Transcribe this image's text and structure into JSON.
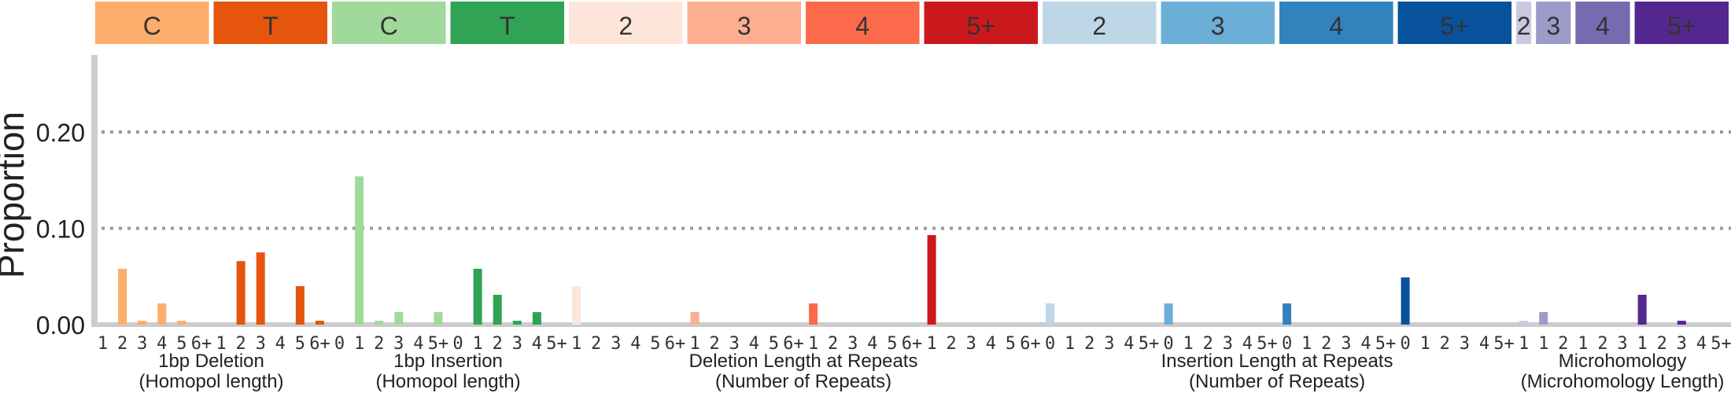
{
  "chart_data": {
    "type": "bar",
    "ylabel": "Proportion",
    "ylim": [
      0,
      0.28
    ],
    "yticks": [
      0.0,
      0.1,
      0.2
    ],
    "ytick_labels": [
      "0.00",
      "0.10",
      "0.20"
    ],
    "grid": "horizontal dotted at 0.10 and 0.20",
    "categories": [
      {
        "label": "C",
        "color": "#fdae6b",
        "text_color": "#333333"
      },
      {
        "label": "T",
        "color": "#e6550d",
        "text_color": "#333333"
      },
      {
        "label": "C",
        "color": "#a1d99b",
        "text_color": "#333333"
      },
      {
        "label": "T",
        "color": "#31a354",
        "text_color": "#333333"
      },
      {
        "label": "2",
        "color": "#fee5d9",
        "text_color": "#333333"
      },
      {
        "label": "3",
        "color": "#fcae91",
        "text_color": "#333333"
      },
      {
        "label": "4",
        "color": "#fb6a4a",
        "text_color": "#333333"
      },
      {
        "label": "5+",
        "color": "#cb181d",
        "text_color": "#333333"
      },
      {
        "label": "2",
        "color": "#bdd7e7",
        "text_color": "#333333"
      },
      {
        "label": "3",
        "color": "#6baed6",
        "text_color": "#333333"
      },
      {
        "label": "4",
        "color": "#3182bd",
        "text_color": "#333333"
      },
      {
        "label": "5+",
        "color": "#08519c",
        "text_color": "#333333"
      },
      {
        "label": "2",
        "color": "#cbc9e2",
        "text_color": "#333333"
      },
      {
        "label": "3",
        "color": "#9e9ac8",
        "text_color": "#333333"
      },
      {
        "label": "4",
        "color": "#756bb1",
        "text_color": "#333333"
      },
      {
        "label": "5+",
        "color": "#54278f",
        "text_color": "#333333"
      }
    ],
    "groups": [
      {
        "title_lines": [
          "1bp Deletion",
          "(Homopol length)"
        ],
        "categories": [
          0,
          1
        ]
      },
      {
        "title_lines": [
          "1bp Insertion",
          "(Homopol length)"
        ],
        "categories": [
          2,
          3
        ]
      },
      {
        "title_lines": [
          "Deletion Length at Repeats",
          "(Number of Repeats)"
        ],
        "categories": [
          4,
          5,
          6,
          7
        ]
      },
      {
        "title_lines": [
          "Insertion Length at Repeats",
          "(Number of Repeats)"
        ],
        "categories": [
          8,
          9,
          10,
          11
        ]
      },
      {
        "title_lines": [
          "Microhomology",
          "(Microhomology Length)"
        ],
        "categories": [
          12,
          13,
          14,
          15
        ]
      }
    ],
    "series": [
      {
        "category": 0,
        "x": [
          "1",
          "2",
          "3",
          "4",
          "5",
          "6+"
        ],
        "values": [
          0.0,
          0.058,
          0.004,
          0.022,
          0.004,
          0.0
        ]
      },
      {
        "category": 1,
        "x": [
          "1",
          "2",
          "3",
          "4",
          "5",
          "6+"
        ],
        "values": [
          0.0,
          0.066,
          0.075,
          0.0,
          0.04,
          0.004
        ]
      },
      {
        "category": 2,
        "x": [
          "0",
          "1",
          "2",
          "3",
          "4",
          "5+"
        ],
        "values": [
          0.0,
          0.154,
          0.004,
          0.013,
          0.0,
          0.013
        ]
      },
      {
        "category": 3,
        "x": [
          "0",
          "1",
          "2",
          "3",
          "4",
          "5+"
        ],
        "values": [
          0.0,
          0.058,
          0.031,
          0.004,
          0.013,
          0.0
        ]
      },
      {
        "category": 4,
        "x": [
          "1",
          "2",
          "3",
          "4",
          "5",
          "6+"
        ],
        "values": [
          0.04,
          0.0,
          0.0,
          0.0,
          0.0,
          0.0
        ]
      },
      {
        "category": 5,
        "x": [
          "1",
          "2",
          "3",
          "4",
          "5",
          "6+"
        ],
        "values": [
          0.013,
          0.0,
          0.0,
          0.0,
          0.0,
          0.0
        ]
      },
      {
        "category": 6,
        "x": [
          "1",
          "2",
          "3",
          "4",
          "5",
          "6+"
        ],
        "values": [
          0.022,
          0.0,
          0.0,
          0.0,
          0.0,
          0.0
        ]
      },
      {
        "category": 7,
        "x": [
          "1",
          "2",
          "3",
          "4",
          "5",
          "6+"
        ],
        "values": [
          0.093,
          0.0,
          0.0,
          0.0,
          0.0,
          0.0
        ]
      },
      {
        "category": 8,
        "x": [
          "0",
          "1",
          "2",
          "3",
          "4",
          "5+"
        ],
        "values": [
          0.022,
          0.0,
          0.0,
          0.0,
          0.0,
          0.0
        ]
      },
      {
        "category": 9,
        "x": [
          "0",
          "1",
          "2",
          "3",
          "4",
          "5+"
        ],
        "values": [
          0.022,
          0.0,
          0.0,
          0.0,
          0.0,
          0.0
        ]
      },
      {
        "category": 10,
        "x": [
          "0",
          "1",
          "2",
          "3",
          "4",
          "5+"
        ],
        "values": [
          0.022,
          0.0,
          0.0,
          0.0,
          0.0,
          0.0
        ]
      },
      {
        "category": 11,
        "x": [
          "0",
          "1",
          "2",
          "3",
          "4",
          "5+"
        ],
        "values": [
          0.049,
          0.0,
          0.0,
          0.0,
          0.0,
          0.0
        ]
      },
      {
        "category": 12,
        "x": [
          "1"
        ],
        "values": [
          0.004
        ]
      },
      {
        "category": 13,
        "x": [
          "1",
          "2"
        ],
        "values": [
          0.013,
          0.0
        ]
      },
      {
        "category": 14,
        "x": [
          "1",
          "2",
          "3"
        ],
        "values": [
          0.0,
          0.0,
          0.0
        ]
      },
      {
        "category": 15,
        "x": [
          "1",
          "2",
          "3",
          "4",
          "5+"
        ],
        "values": [
          0.031,
          0.0,
          0.004,
          0.0,
          0.0
        ]
      }
    ]
  }
}
